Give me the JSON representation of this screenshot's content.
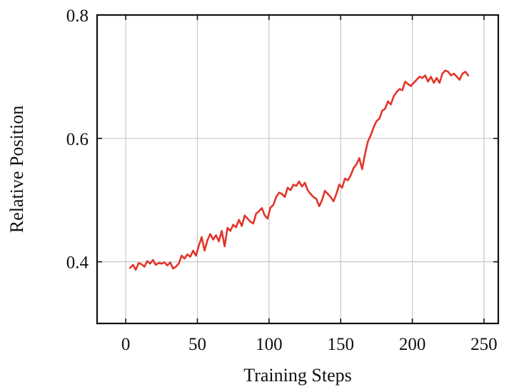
{
  "chart_data": {
    "type": "line",
    "title": "",
    "xlabel": "Training Steps",
    "ylabel": "Relative Position",
    "xlim": [
      -20,
      260
    ],
    "ylim": [
      0.3,
      0.8
    ],
    "xticks": [
      0,
      50,
      100,
      150,
      200,
      250
    ],
    "yticks": [
      0.4,
      0.6,
      0.8
    ],
    "xtick_labels": [
      "0",
      "50",
      "100",
      "150",
      "200",
      "250"
    ],
    "ytick_labels": [
      "0.4",
      "0.6",
      "0.8"
    ],
    "grid": true,
    "legend": "none",
    "series": [
      {
        "color": "#e2352a",
        "x": [
          3,
          5,
          7,
          9,
          11,
          13,
          15,
          17,
          19,
          21,
          23,
          25,
          27,
          29,
          31,
          33,
          35,
          37,
          39,
          41,
          43,
          45,
          47,
          49,
          51,
          53,
          55,
          57,
          59,
          61,
          63,
          65,
          67,
          69,
          71,
          73,
          75,
          77,
          79,
          81,
          83,
          85,
          87,
          89,
          91,
          93,
          95,
          97,
          99,
          101,
          103,
          105,
          107,
          109,
          111,
          113,
          115,
          117,
          119,
          121,
          123,
          125,
          127,
          129,
          131,
          133,
          135,
          137,
          139,
          141,
          143,
          145,
          147,
          149,
          151,
          153,
          155,
          157,
          159,
          161,
          163,
          165,
          167,
          169,
          171,
          173,
          175,
          177,
          179,
          181,
          183,
          185,
          187,
          189,
          191,
          193,
          195,
          197,
          199,
          201,
          203,
          205,
          207,
          209,
          211,
          213,
          215,
          217,
          219,
          221,
          223,
          225,
          227,
          229,
          231,
          233,
          235,
          237,
          239
        ],
        "values": [
          0.39,
          0.395,
          0.387,
          0.398,
          0.396,
          0.392,
          0.401,
          0.397,
          0.403,
          0.395,
          0.398,
          0.397,
          0.399,
          0.394,
          0.399,
          0.389,
          0.392,
          0.397,
          0.41,
          0.405,
          0.412,
          0.408,
          0.418,
          0.41,
          0.426,
          0.44,
          0.418,
          0.435,
          0.445,
          0.436,
          0.443,
          0.433,
          0.45,
          0.425,
          0.455,
          0.45,
          0.46,
          0.456,
          0.468,
          0.458,
          0.475,
          0.47,
          0.465,
          0.462,
          0.478,
          0.482,
          0.487,
          0.475,
          0.47,
          0.488,
          0.492,
          0.505,
          0.512,
          0.51,
          0.505,
          0.52,
          0.516,
          0.525,
          0.523,
          0.53,
          0.522,
          0.528,
          0.516,
          0.51,
          0.505,
          0.502,
          0.49,
          0.5,
          0.515,
          0.51,
          0.505,
          0.498,
          0.51,
          0.525,
          0.52,
          0.535,
          0.532,
          0.54,
          0.552,
          0.558,
          0.568,
          0.55,
          0.575,
          0.595,
          0.605,
          0.618,
          0.628,
          0.632,
          0.645,
          0.648,
          0.66,
          0.655,
          0.668,
          0.675,
          0.68,
          0.678,
          0.692,
          0.688,
          0.685,
          0.69,
          0.695,
          0.7,
          0.698,
          0.702,
          0.692,
          0.7,
          0.69,
          0.698,
          0.69,
          0.705,
          0.71,
          0.708,
          0.702,
          0.705,
          0.7,
          0.695,
          0.705,
          0.708,
          0.702
        ]
      }
    ]
  }
}
